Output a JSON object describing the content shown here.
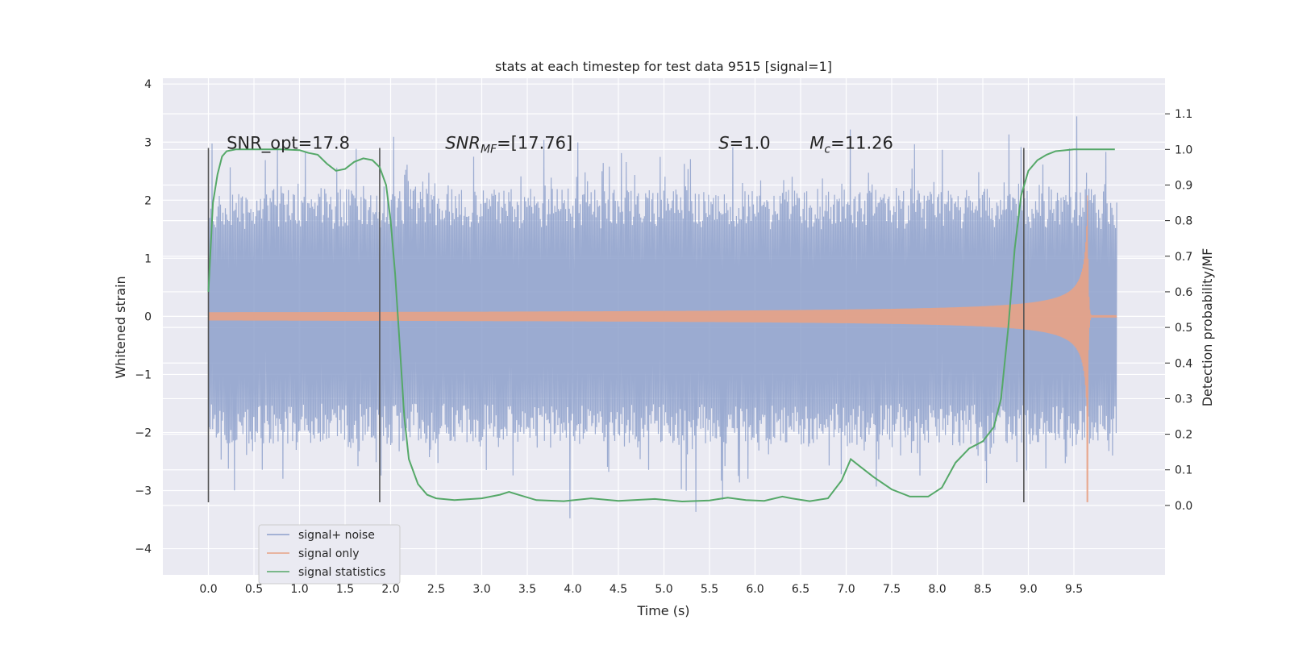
{
  "chart_data": {
    "type": "line",
    "title": "stats at each timestep for test data 9515 [signal=1]",
    "xlabel": "Time (s)",
    "ylabel": "Whitened strain",
    "y2label": "Detection probability/MF",
    "xlim": [
      -0.5,
      10.5
    ],
    "ylim": [
      -4.45,
      4.1
    ],
    "y2lim": [
      -0.195,
      1.2
    ],
    "x_ticks": [
      0.0,
      0.5,
      1.0,
      1.5,
      2.0,
      2.5,
      3.0,
      3.5,
      4.0,
      4.5,
      5.0,
      5.5,
      6.0,
      6.5,
      7.0,
      7.5,
      8.0,
      8.5,
      9.0,
      9.5
    ],
    "x_tick_labels": [
      "0.0",
      "0.5",
      "1.0",
      "1.5",
      "2.0",
      "2.5",
      "3.0",
      "3.5",
      "4.0",
      "4.5",
      "5.0",
      "5.5",
      "6.0",
      "6.5",
      "7.0",
      "7.5",
      "8.0",
      "8.5",
      "9.0",
      "9.5"
    ],
    "y_ticks": [
      -4,
      -3,
      -2,
      -1,
      0,
      1,
      2,
      3,
      4
    ],
    "y_tick_labels": [
      "−4",
      "−3",
      "−2",
      "−1",
      "0",
      "1",
      "2",
      "3",
      "4"
    ],
    "y2_ticks": [
      0.0,
      0.1,
      0.2,
      0.3,
      0.4,
      0.5,
      0.6,
      0.7,
      0.8,
      0.9,
      1.0,
      1.1
    ],
    "y2_tick_labels": [
      "0.0",
      "0.1",
      "0.2",
      "0.3",
      "0.4",
      "0.5",
      "0.6",
      "0.7",
      "0.8",
      "0.9",
      "1.0",
      "1.1"
    ],
    "grid": true,
    "legend_position": "bottom-left",
    "series": [
      {
        "name": "signal+ noise",
        "color": "#8da0cb",
        "style": "noisy strain, approx. ±1.5 to ±3.7 envelope over 0–10 s"
      },
      {
        "name": "signal only",
        "color": "#e8a285",
        "style": "chirp growing from 0 near 5 s to ±2.3 at 9.65 s, then ringdown"
      },
      {
        "name": "signal statistics",
        "color": "#55a868",
        "axis": "right",
        "points": [
          [
            0.0,
            0.6
          ],
          [
            0.05,
            0.85
          ],
          [
            0.1,
            0.93
          ],
          [
            0.15,
            0.98
          ],
          [
            0.2,
            0.995
          ],
          [
            0.3,
            1.0
          ],
          [
            0.5,
            1.0
          ],
          [
            0.8,
            1.0
          ],
          [
            1.0,
            0.998
          ],
          [
            1.1,
            0.99
          ],
          [
            1.2,
            0.985
          ],
          [
            1.3,
            0.96
          ],
          [
            1.4,
            0.94
          ],
          [
            1.5,
            0.945
          ],
          [
            1.6,
            0.965
          ],
          [
            1.7,
            0.975
          ],
          [
            1.8,
            0.97
          ],
          [
            1.88,
            0.95
          ],
          [
            1.95,
            0.9
          ],
          [
            2.0,
            0.8
          ],
          [
            2.05,
            0.65
          ],
          [
            2.1,
            0.45
          ],
          [
            2.15,
            0.25
          ],
          [
            2.2,
            0.13
          ],
          [
            2.3,
            0.06
          ],
          [
            2.4,
            0.03
          ],
          [
            2.5,
            0.02
          ],
          [
            2.7,
            0.015
          ],
          [
            3.0,
            0.02
          ],
          [
            3.2,
            0.03
          ],
          [
            3.3,
            0.038
          ],
          [
            3.4,
            0.03
          ],
          [
            3.6,
            0.015
          ],
          [
            3.9,
            0.012
          ],
          [
            4.2,
            0.02
          ],
          [
            4.5,
            0.013
          ],
          [
            4.9,
            0.018
          ],
          [
            5.2,
            0.011
          ],
          [
            5.5,
            0.014
          ],
          [
            5.7,
            0.022
          ],
          [
            5.9,
            0.015
          ],
          [
            6.1,
            0.013
          ],
          [
            6.3,
            0.025
          ],
          [
            6.4,
            0.02
          ],
          [
            6.6,
            0.012
          ],
          [
            6.8,
            0.02
          ],
          [
            6.95,
            0.07
          ],
          [
            7.05,
            0.13
          ],
          [
            7.15,
            0.11
          ],
          [
            7.3,
            0.08
          ],
          [
            7.5,
            0.045
          ],
          [
            7.7,
            0.025
          ],
          [
            7.9,
            0.025
          ],
          [
            8.05,
            0.05
          ],
          [
            8.2,
            0.12
          ],
          [
            8.35,
            0.16
          ],
          [
            8.5,
            0.18
          ],
          [
            8.62,
            0.22
          ],
          [
            8.7,
            0.3
          ],
          [
            8.78,
            0.5
          ],
          [
            8.85,
            0.72
          ],
          [
            8.92,
            0.87
          ],
          [
            9.0,
            0.94
          ],
          [
            9.1,
            0.97
          ],
          [
            9.2,
            0.985
          ],
          [
            9.3,
            0.995
          ],
          [
            9.5,
            1.0
          ],
          [
            9.7,
            1.0
          ],
          [
            9.95,
            1.0
          ]
        ]
      }
    ],
    "vertical_lines": [
      0.0,
      1.88,
      8.95
    ],
    "annotations": [
      {
        "text": "SNR_opt=17.8",
        "x": 0.2,
        "y": 3.0
      },
      {
        "text": "SNR_MF=[17.76]",
        "x": 2.6,
        "y": 3.0
      },
      {
        "text": "S=1.0",
        "x": 5.6,
        "y": 3.0
      },
      {
        "text": "M_c=11.26",
        "x": 6.6,
        "y": 3.0
      }
    ]
  }
}
